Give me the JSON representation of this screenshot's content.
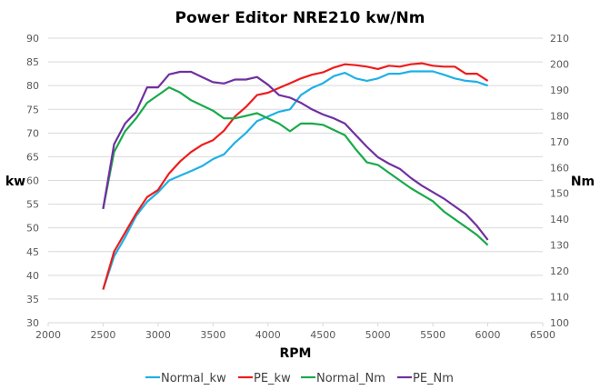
{
  "chart_data": {
    "type": "line",
    "title": "Power Editor NRE210 kw/Nm",
    "xlabel": "RPM",
    "ylabel": "kw",
    "y2label": "Nm",
    "xlim": [
      2000,
      6500
    ],
    "ylim": [
      30,
      90
    ],
    "y2lim": [
      100,
      210
    ],
    "xticks": [
      2000,
      2500,
      3000,
      3500,
      4000,
      4500,
      5000,
      5500,
      6000,
      6500
    ],
    "yticks": [
      30,
      35,
      40,
      45,
      50,
      55,
      60,
      65,
      70,
      75,
      80,
      85,
      90
    ],
    "y2ticks": [
      100,
      110,
      120,
      130,
      140,
      150,
      160,
      170,
      180,
      190,
      200,
      210
    ],
    "grid": true,
    "legend": "bottom",
    "x": [
      2500,
      2600,
      2700,
      2800,
      2900,
      3000,
      3100,
      3200,
      3300,
      3400,
      3500,
      3600,
      3700,
      3800,
      3900,
      4000,
      4100,
      4200,
      4300,
      4400,
      4500,
      4600,
      4700,
      4800,
      4900,
      5000,
      5100,
      5200,
      5300,
      5400,
      5500,
      5600,
      5700,
      5800,
      5900,
      6000
    ],
    "series": [
      {
        "name": "Normal_kw",
        "axis": "left",
        "color": "#1fb0e6",
        "values": [
          37,
          44,
          48,
          52.5,
          55.5,
          57.5,
          60,
          61,
          62,
          63,
          64.5,
          65.5,
          68,
          70,
          72.5,
          73.5,
          74.5,
          75,
          78,
          79.5,
          80.5,
          82,
          82.7,
          81.5,
          81,
          81.5,
          82.5,
          82.5,
          83,
          83,
          83,
          82.3,
          81.5,
          81,
          80.8,
          80
        ]
      },
      {
        "name": "PE_kw",
        "axis": "left",
        "color": "#ee1c1c",
        "values": [
          37,
          45,
          49,
          53,
          56.5,
          58,
          61.5,
          64,
          66,
          67.5,
          68.5,
          70.5,
          73.5,
          75.5,
          78,
          78.5,
          79.5,
          80.5,
          81.5,
          82.3,
          82.8,
          83.8,
          84.5,
          84.3,
          84,
          83.5,
          84.2,
          84,
          84.5,
          84.7,
          84.2,
          84,
          84,
          82.5,
          82.5,
          81
        ]
      },
      {
        "name": "Normal_Nm",
        "axis": "right",
        "color": "#1aaa4a",
        "values": [
          144,
          166,
          174,
          179,
          185,
          188,
          191,
          189,
          186,
          184,
          182,
          179,
          179,
          180,
          181,
          179,
          177,
          174,
          177,
          177,
          176.5,
          174.5,
          172.5,
          167,
          162,
          161,
          158,
          155,
          152,
          149.5,
          147,
          143,
          140,
          137,
          134,
          130
        ]
      },
      {
        "name": "PE_Nm",
        "axis": "right",
        "color": "#7030a0",
        "values": [
          144,
          169,
          177,
          181.5,
          191,
          191,
          196,
          197,
          197,
          195,
          193,
          192.5,
          194,
          194,
          195,
          192,
          188,
          187,
          185,
          182.5,
          180.5,
          179,
          177,
          172.5,
          168,
          164,
          161.5,
          159.5,
          156,
          153,
          150.5,
          148,
          145,
          142,
          137.5,
          132
        ]
      }
    ]
  }
}
